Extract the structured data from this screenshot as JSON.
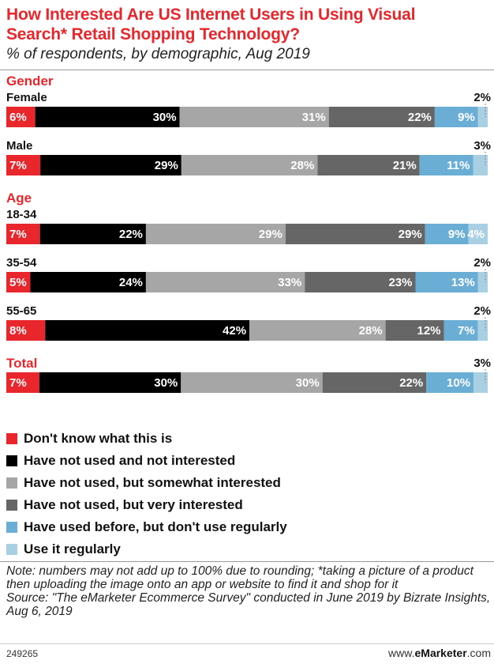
{
  "header": {
    "title_line1": "How Interested Are US Internet Users in Using Visual",
    "title_line2": "Search* Retail Shopping Technology?",
    "subtitle": "% of respondents, by demographic, Aug 2019"
  },
  "colors": {
    "title": "#e8262b",
    "group": "#e8262b",
    "series": [
      "#e8262b",
      "#000000",
      "#a6a6a6",
      "#666666",
      "#6aaed6",
      "#a9cfe2"
    ]
  },
  "chart_data": {
    "type": "bar",
    "orientation": "horizontal",
    "stacked": true,
    "title": "How Interested Are US Internet Users in Using Visual Search* Retail Shopping Technology?",
    "subtitle": "% of respondents, by demographic, Aug 2019",
    "legend_position": "bottom",
    "groups": [
      {
        "group": "Gender",
        "rows": [
          {
            "label": "Female",
            "values": [
              6,
              30,
              31,
              22,
              9,
              2
            ]
          },
          {
            "label": "Male",
            "values": [
              7,
              29,
              28,
              21,
              11,
              3
            ]
          }
        ]
      },
      {
        "group": "Age",
        "rows": [
          {
            "label": "18-34",
            "values": [
              7,
              22,
              29,
              29,
              9,
              4
            ]
          },
          {
            "label": "35-54",
            "values": [
              5,
              24,
              33,
              23,
              13,
              2
            ]
          },
          {
            "label": "55-65",
            "values": [
              8,
              42,
              28,
              12,
              7,
              2
            ]
          }
        ]
      },
      {
        "group": "Total",
        "rows": [
          {
            "label": "",
            "values": [
              7,
              30,
              30,
              22,
              10,
              3
            ]
          }
        ]
      }
    ],
    "series": [
      {
        "name": "Don't know what this is"
      },
      {
        "name": "Have not used and not interested"
      },
      {
        "name": "Have not used, but somewhat interested"
      },
      {
        "name": "Have not used, but very interested"
      },
      {
        "name": "Have used before, but don't use regularly"
      },
      {
        "name": "Use it regularly"
      }
    ]
  },
  "notes": {
    "note": "Note: numbers may not add up to 100% due to rounding; *taking a picture of a product then uploading the image onto an app or website to find it and shop for it",
    "source": "Source: \"The eMarketer Ecommerce Survey\" conducted in June 2019 by Bizrate Insights, Aug 6, 2019"
  },
  "footer": {
    "chart_id": "249265",
    "brand_prefix": "www.",
    "brand_name": "eMarketer",
    "brand_suffix": ".com"
  }
}
